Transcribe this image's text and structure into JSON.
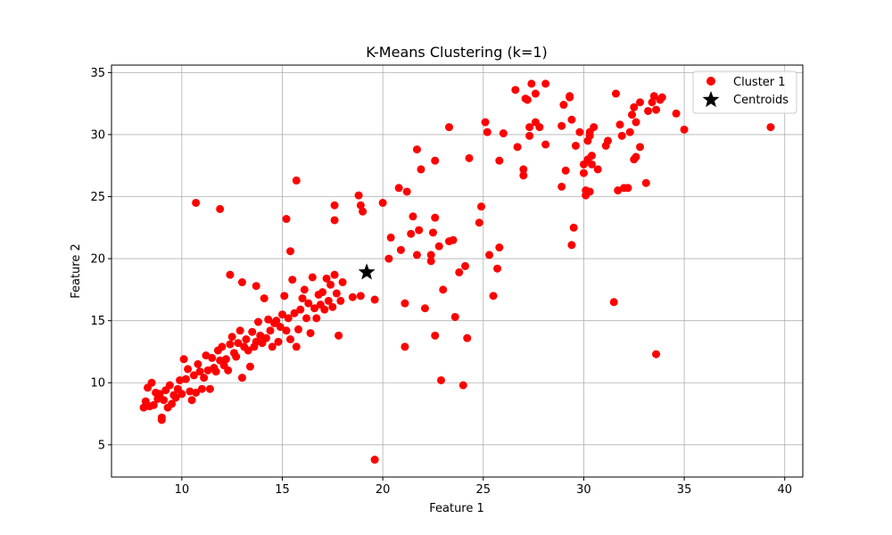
{
  "chart_data": {
    "type": "scatter",
    "title": "K-Means Clustering (k=1)",
    "xlabel": "Feature 1",
    "ylabel": "Feature 2",
    "xlim": [
      6.5,
      40.9
    ],
    "ylim": [
      2.4,
      35.6
    ],
    "xticks": [
      10,
      15,
      20,
      25,
      30,
      35,
      40
    ],
    "yticks": [
      5,
      10,
      15,
      20,
      25,
      30,
      35
    ],
    "grid": true,
    "legend_position": "top-right",
    "series": [
      {
        "name": "Cluster 1",
        "color": "#ff0000",
        "marker": "circle",
        "points": [
          [
            8.1,
            8.0
          ],
          [
            8.2,
            8.5
          ],
          [
            8.3,
            9.6
          ],
          [
            8.4,
            8.1
          ],
          [
            8.5,
            10.0
          ],
          [
            8.6,
            8.2
          ],
          [
            8.7,
            9.2
          ],
          [
            8.8,
            8.7
          ],
          [
            8.9,
            9.1
          ],
          [
            9.0,
            7.0
          ],
          [
            9.0,
            7.2
          ],
          [
            9.1,
            8.6
          ],
          [
            9.2,
            9.4
          ],
          [
            9.3,
            8.0
          ],
          [
            9.4,
            9.8
          ],
          [
            9.5,
            8.3
          ],
          [
            9.6,
            9.0
          ],
          [
            9.7,
            8.8
          ],
          [
            9.8,
            9.5
          ],
          [
            9.9,
            10.2
          ],
          [
            10.0,
            9.1
          ],
          [
            10.1,
            11.9
          ],
          [
            10.2,
            10.3
          ],
          [
            10.3,
            11.1
          ],
          [
            10.4,
            9.3
          ],
          [
            10.5,
            8.6
          ],
          [
            10.6,
            10.6
          ],
          [
            10.7,
            9.2
          ],
          [
            10.8,
            11.5
          ],
          [
            10.9,
            10.9
          ],
          [
            11.0,
            9.5
          ],
          [
            11.1,
            10.4
          ],
          [
            11.2,
            12.2
          ],
          [
            11.3,
            11.0
          ],
          [
            11.4,
            9.5
          ],
          [
            11.5,
            12.0
          ],
          [
            11.6,
            11.2
          ],
          [
            11.7,
            10.9
          ],
          [
            11.8,
            12.6
          ],
          [
            11.9,
            11.8
          ],
          [
            12.0,
            12.9
          ],
          [
            12.1,
            11.4
          ],
          [
            12.2,
            11.9
          ],
          [
            12.3,
            11.0
          ],
          [
            12.4,
            13.1
          ],
          [
            12.5,
            13.7
          ],
          [
            12.6,
            12.4
          ],
          [
            12.7,
            12.1
          ],
          [
            12.8,
            13.2
          ],
          [
            12.9,
            14.2
          ],
          [
            13.0,
            10.4
          ],
          [
            13.1,
            12.9
          ],
          [
            13.2,
            13.5
          ],
          [
            13.3,
            12.6
          ],
          [
            13.4,
            11.3
          ],
          [
            13.5,
            14.1
          ],
          [
            13.6,
            12.9
          ],
          [
            13.7,
            13.3
          ],
          [
            13.8,
            14.9
          ],
          [
            13.9,
            13.8
          ],
          [
            14.0,
            13.2
          ],
          [
            14.1,
            16.8
          ],
          [
            14.2,
            13.6
          ],
          [
            14.3,
            15.1
          ],
          [
            14.4,
            14.2
          ],
          [
            14.5,
            12.9
          ],
          [
            14.6,
            14.8
          ],
          [
            14.7,
            15.0
          ],
          [
            14.8,
            13.3
          ],
          [
            14.9,
            14.5
          ],
          [
            15.0,
            15.5
          ],
          [
            15.1,
            17.0
          ],
          [
            15.2,
            14.2
          ],
          [
            15.3,
            15.2
          ],
          [
            15.4,
            13.5
          ],
          [
            15.5,
            18.3
          ],
          [
            15.6,
            15.6
          ],
          [
            15.7,
            12.9
          ],
          [
            15.8,
            14.3
          ],
          [
            15.9,
            15.9
          ],
          [
            16.0,
            16.8
          ],
          [
            16.1,
            17.5
          ],
          [
            16.2,
            15.2
          ],
          [
            16.3,
            16.4
          ],
          [
            16.4,
            14.0
          ],
          [
            16.5,
            18.5
          ],
          [
            16.6,
            16.0
          ],
          [
            16.7,
            15.2
          ],
          [
            16.8,
            17.1
          ],
          [
            16.9,
            16.3
          ],
          [
            17.0,
            17.3
          ],
          [
            17.1,
            15.9
          ],
          [
            17.2,
            18.4
          ],
          [
            17.3,
            16.6
          ],
          [
            17.4,
            17.9
          ],
          [
            17.5,
            16.1
          ],
          [
            17.6,
            18.7
          ],
          [
            17.7,
            17.2
          ],
          [
            17.8,
            13.8
          ],
          [
            17.9,
            16.6
          ],
          [
            18.0,
            18.1
          ],
          [
            18.5,
            16.9
          ],
          [
            18.9,
            17.0
          ],
          [
            12.4,
            18.7
          ],
          [
            13.0,
            18.1
          ],
          [
            13.7,
            17.8
          ],
          [
            15.2,
            23.2
          ],
          [
            15.4,
            20.6
          ],
          [
            15.7,
            26.3
          ],
          [
            10.7,
            24.5
          ],
          [
            11.9,
            24.0
          ],
          [
            17.6,
            24.3
          ],
          [
            17.6,
            23.1
          ],
          [
            18.8,
            25.1
          ],
          [
            18.9,
            24.3
          ],
          [
            19.0,
            23.8
          ],
          [
            19.6,
            16.7
          ],
          [
            20.0,
            24.5
          ],
          [
            20.3,
            20.0
          ],
          [
            20.4,
            21.7
          ],
          [
            20.8,
            25.7
          ],
          [
            20.9,
            20.7
          ],
          [
            21.1,
            16.4
          ],
          [
            21.1,
            12.9
          ],
          [
            21.2,
            25.4
          ],
          [
            21.4,
            22.0
          ],
          [
            21.5,
            23.4
          ],
          [
            21.7,
            28.8
          ],
          [
            21.7,
            20.3
          ],
          [
            21.8,
            22.3
          ],
          [
            21.9,
            27.2
          ],
          [
            22.1,
            16.0
          ],
          [
            22.4,
            20.3
          ],
          [
            22.4,
            19.8
          ],
          [
            22.5,
            22.1
          ],
          [
            22.6,
            23.3
          ],
          [
            22.6,
            27.9
          ],
          [
            22.6,
            13.8
          ],
          [
            22.8,
            21.0
          ],
          [
            22.9,
            10.2
          ],
          [
            23.0,
            17.5
          ],
          [
            23.3,
            21.4
          ],
          [
            23.3,
            30.6
          ],
          [
            23.5,
            21.5
          ],
          [
            23.6,
            15.3
          ],
          [
            23.8,
            18.9
          ],
          [
            24.0,
            9.8
          ],
          [
            24.1,
            19.4
          ],
          [
            24.2,
            13.6
          ],
          [
            24.3,
            28.1
          ],
          [
            24.8,
            22.9
          ],
          [
            24.9,
            24.2
          ],
          [
            25.1,
            31.0
          ],
          [
            25.2,
            30.2
          ],
          [
            25.3,
            20.3
          ],
          [
            25.5,
            17.0
          ],
          [
            25.7,
            19.2
          ],
          [
            25.8,
            20.9
          ],
          [
            25.8,
            27.9
          ],
          [
            26.0,
            30.1
          ],
          [
            26.6,
            33.6
          ],
          [
            26.7,
            29.0
          ],
          [
            27.0,
            27.2
          ],
          [
            27.0,
            26.7
          ],
          [
            27.1,
            32.9
          ],
          [
            27.2,
            32.8
          ],
          [
            27.3,
            30.6
          ],
          [
            27.3,
            29.9
          ],
          [
            27.4,
            34.1
          ],
          [
            27.6,
            33.3
          ],
          [
            27.6,
            31.0
          ],
          [
            27.8,
            30.6
          ],
          [
            28.1,
            34.1
          ],
          [
            28.1,
            29.2
          ],
          [
            28.9,
            25.8
          ],
          [
            28.9,
            30.7
          ],
          [
            29.0,
            32.4
          ],
          [
            29.1,
            27.1
          ],
          [
            29.3,
            33.1
          ],
          [
            29.3,
            33.0
          ],
          [
            29.4,
            21.1
          ],
          [
            29.4,
            31.2
          ],
          [
            29.5,
            22.5
          ],
          [
            29.6,
            29.1
          ],
          [
            29.8,
            30.2
          ],
          [
            30.0,
            26.9
          ],
          [
            30.0,
            27.6
          ],
          [
            30.1,
            25.5
          ],
          [
            30.1,
            25.1
          ],
          [
            30.2,
            28.0
          ],
          [
            30.2,
            29.5
          ],
          [
            30.3,
            30.2
          ],
          [
            30.3,
            25.4
          ],
          [
            30.3,
            29.9
          ],
          [
            30.4,
            27.6
          ],
          [
            30.4,
            28.3
          ],
          [
            30.5,
            30.6
          ],
          [
            30.7,
            27.2
          ],
          [
            31.1,
            29.1
          ],
          [
            31.2,
            29.5
          ],
          [
            31.5,
            16.5
          ],
          [
            31.6,
            33.3
          ],
          [
            31.7,
            25.5
          ],
          [
            31.8,
            30.8
          ],
          [
            31.9,
            29.9
          ],
          [
            32.0,
            25.7
          ],
          [
            32.2,
            25.7
          ],
          [
            32.3,
            30.2
          ],
          [
            32.4,
            31.6
          ],
          [
            32.5,
            32.2
          ],
          [
            32.5,
            28.0
          ],
          [
            32.6,
            28.2
          ],
          [
            32.6,
            31.0
          ],
          [
            32.8,
            29.0
          ],
          [
            32.8,
            32.6
          ],
          [
            33.1,
            26.1
          ],
          [
            33.2,
            31.9
          ],
          [
            33.4,
            32.6
          ],
          [
            33.5,
            33.1
          ],
          [
            33.6,
            12.3
          ],
          [
            33.6,
            32.0
          ],
          [
            33.8,
            32.8
          ],
          [
            33.9,
            33.0
          ],
          [
            34.6,
            31.7
          ],
          [
            35.0,
            30.4
          ],
          [
            39.3,
            30.6
          ],
          [
            19.6,
            3.8
          ]
        ]
      },
      {
        "name": "Centroids",
        "color": "#000000",
        "marker": "star",
        "points": [
          [
            19.2,
            18.9
          ]
        ]
      }
    ]
  }
}
